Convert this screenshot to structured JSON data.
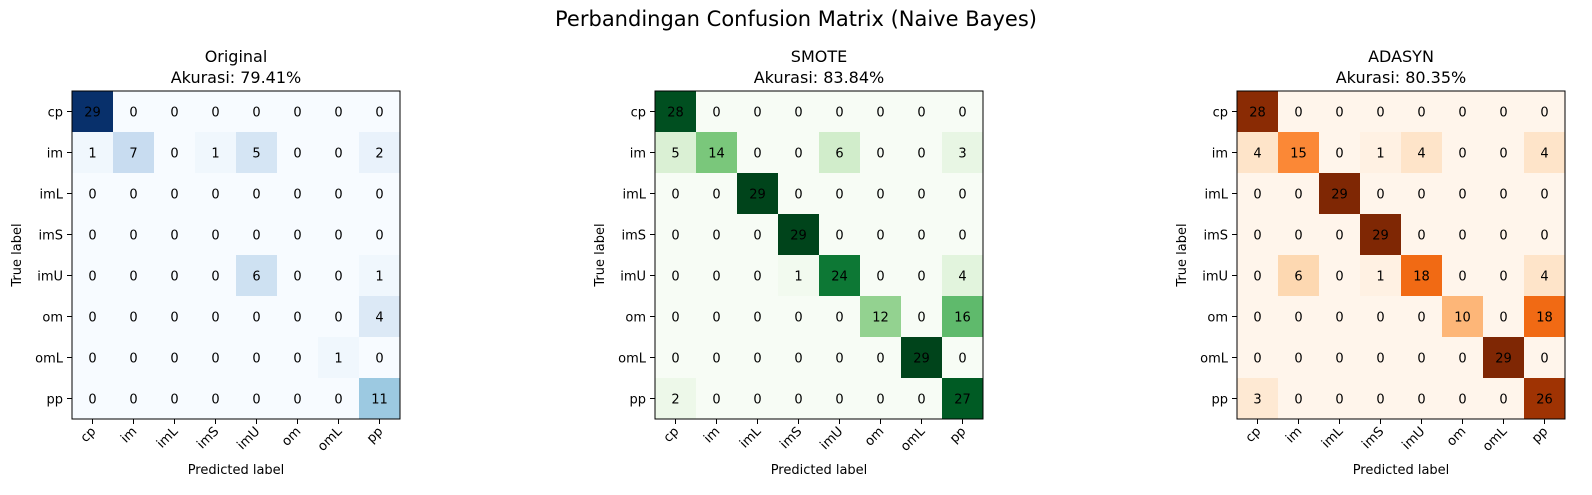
{
  "suptitle": "Perbandingan Confusion Matrix (Naive Bayes)",
  "chart_data": [
    {
      "type": "heatmap",
      "title_line1": "Original",
      "title_line2": "Akurasi: 79.41%",
      "xlabel": "Predicted label",
      "ylabel": "True label",
      "colormap": "Blues",
      "colors": {
        "low": "#f7fbff",
        "high": "#08306b"
      },
      "x_categories": [
        "cp",
        "im",
        "imL",
        "imS",
        "imU",
        "om",
        "omL",
        "pp"
      ],
      "y_categories": [
        "cp",
        "im",
        "imL",
        "imS",
        "imU",
        "om",
        "omL",
        "pp"
      ],
      "values": [
        [
          29,
          0,
          0,
          0,
          0,
          0,
          0,
          0
        ],
        [
          1,
          7,
          0,
          1,
          5,
          0,
          0,
          2
        ],
        [
          0,
          0,
          0,
          0,
          0,
          0,
          0,
          0
        ],
        [
          0,
          0,
          0,
          0,
          0,
          0,
          0,
          0
        ],
        [
          0,
          0,
          0,
          0,
          6,
          0,
          0,
          1
        ],
        [
          0,
          0,
          0,
          0,
          0,
          0,
          0,
          4
        ],
        [
          0,
          0,
          0,
          0,
          0,
          0,
          1,
          0
        ],
        [
          0,
          0,
          0,
          0,
          0,
          0,
          0,
          11
        ]
      ]
    },
    {
      "type": "heatmap",
      "title_line1": "SMOTE",
      "title_line2": "Akurasi: 83.84%",
      "xlabel": "Predicted label",
      "ylabel": "True label",
      "colormap": "Greens",
      "colors": {
        "low": "#f7fcf5",
        "high": "#00441b"
      },
      "x_categories": [
        "cp",
        "im",
        "imL",
        "imS",
        "imU",
        "om",
        "omL",
        "pp"
      ],
      "y_categories": [
        "cp",
        "im",
        "imL",
        "imS",
        "imU",
        "om",
        "omL",
        "pp"
      ],
      "values": [
        [
          28,
          0,
          0,
          0,
          0,
          0,
          0,
          0
        ],
        [
          5,
          14,
          0,
          0,
          6,
          0,
          0,
          3
        ],
        [
          0,
          0,
          29,
          0,
          0,
          0,
          0,
          0
        ],
        [
          0,
          0,
          0,
          29,
          0,
          0,
          0,
          0
        ],
        [
          0,
          0,
          0,
          1,
          24,
          0,
          0,
          4
        ],
        [
          0,
          0,
          0,
          0,
          0,
          12,
          0,
          16
        ],
        [
          0,
          0,
          0,
          0,
          0,
          0,
          29,
          0
        ],
        [
          2,
          0,
          0,
          0,
          0,
          0,
          0,
          27
        ]
      ]
    },
    {
      "type": "heatmap",
      "title_line1": "ADASYN",
      "title_line2": "Akurasi: 80.35%",
      "xlabel": "Predicted label",
      "ylabel": "True label",
      "colormap": "Oranges",
      "colors": {
        "low": "#fff5eb",
        "high": "#7f2704"
      },
      "x_categories": [
        "cp",
        "im",
        "imL",
        "imS",
        "imU",
        "om",
        "omL",
        "pp"
      ],
      "y_categories": [
        "cp",
        "im",
        "imL",
        "imS",
        "imU",
        "om",
        "omL",
        "pp"
      ],
      "values": [
        [
          28,
          0,
          0,
          0,
          0,
          0,
          0,
          0
        ],
        [
          4,
          15,
          0,
          1,
          4,
          0,
          0,
          4
        ],
        [
          0,
          0,
          29,
          0,
          0,
          0,
          0,
          0
        ],
        [
          0,
          0,
          0,
          29,
          0,
          0,
          0,
          0
        ],
        [
          0,
          6,
          0,
          1,
          18,
          0,
          0,
          4
        ],
        [
          0,
          0,
          0,
          0,
          0,
          10,
          0,
          18
        ],
        [
          0,
          0,
          0,
          0,
          0,
          0,
          29,
          0
        ],
        [
          3,
          0,
          0,
          0,
          0,
          0,
          0,
          26
        ]
      ]
    }
  ]
}
